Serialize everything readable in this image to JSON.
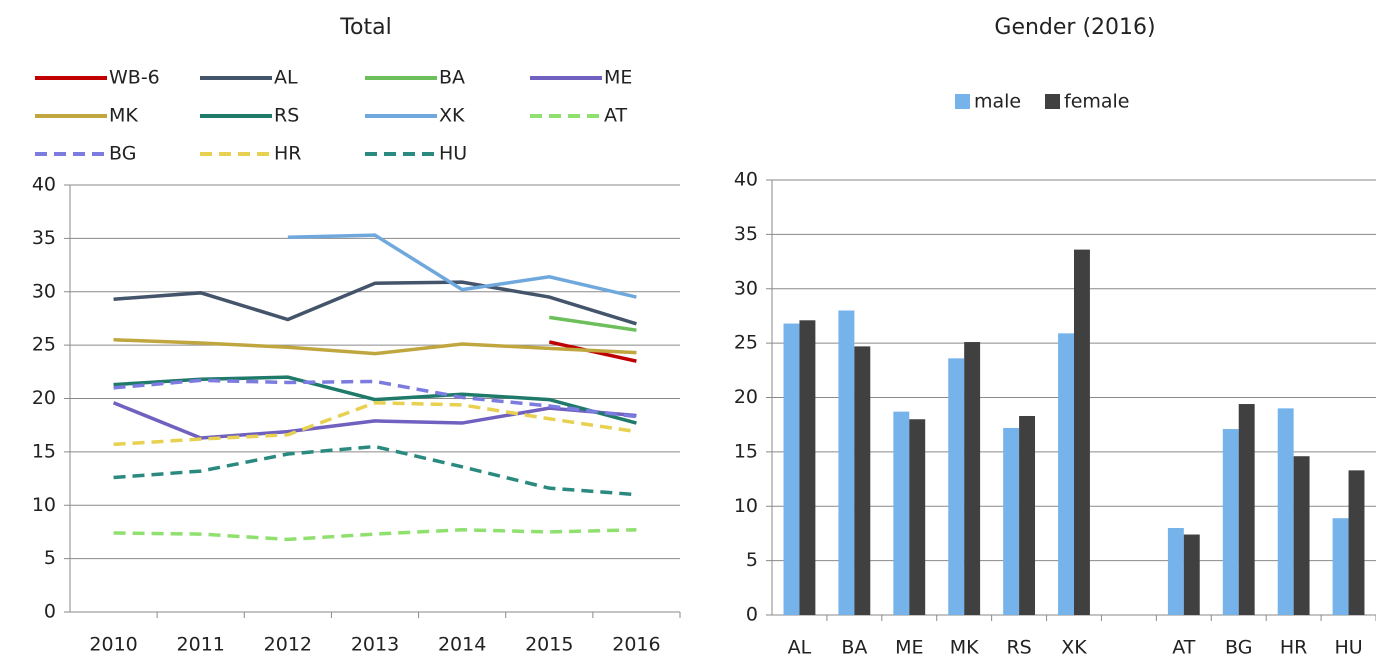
{
  "chart_data": [
    {
      "type": "line",
      "title": "Total",
      "categories": [
        "2010",
        "2011",
        "2012",
        "2013",
        "2014",
        "2015",
        "2016"
      ],
      "ylim": [
        0,
        40
      ],
      "yticks": [
        0,
        5,
        10,
        15,
        20,
        25,
        30,
        35,
        40
      ],
      "grid": true,
      "series": [
        {
          "name": "WB-6",
          "color": "#c00000",
          "values": [
            null,
            null,
            null,
            null,
            null,
            25.3,
            23.5
          ]
        },
        {
          "name": "AL",
          "color": "#44546a",
          "values": [
            29.3,
            29.9,
            27.4,
            30.8,
            30.9,
            29.5,
            27.0
          ]
        },
        {
          "name": "BA",
          "color": "#6cbf5a",
          "values": [
            null,
            null,
            null,
            null,
            null,
            27.6,
            26.4
          ]
        },
        {
          "name": "ME",
          "color": "#7060c0",
          "values": [
            19.6,
            16.3,
            16.9,
            17.9,
            17.7,
            19.1,
            18.4
          ]
        },
        {
          "name": "MK",
          "color": "#bfa63f",
          "values": [
            25.5,
            25.2,
            24.8,
            24.2,
            25.1,
            24.7,
            24.3
          ]
        },
        {
          "name": "RS",
          "color": "#1f7a6a",
          "values": [
            21.3,
            21.8,
            22.0,
            19.9,
            20.4,
            19.9,
            17.7
          ]
        },
        {
          "name": "XK",
          "color": "#6fa8dc",
          "values": [
            null,
            null,
            35.1,
            35.3,
            30.2,
            31.4,
            29.5
          ]
        },
        {
          "name": "AT",
          "color": "#90e070",
          "dashed": true,
          "values": [
            7.4,
            7.3,
            6.8,
            7.3,
            7.7,
            7.5,
            7.7
          ]
        },
        {
          "name": "BG",
          "color": "#7b7be0",
          "dashed": true,
          "values": [
            21.0,
            21.7,
            21.5,
            21.6,
            20.1,
            19.3,
            18.3
          ]
        },
        {
          "name": "HR",
          "color": "#e8d050",
          "dashed": true,
          "values": [
            15.7,
            16.2,
            16.6,
            19.6,
            19.4,
            18.1,
            16.9
          ]
        },
        {
          "name": "HU",
          "color": "#2a8a80",
          "dashed": true,
          "values": [
            12.6,
            13.2,
            14.8,
            15.5,
            13.6,
            11.6,
            11.0
          ]
        }
      ]
    },
    {
      "type": "bar",
      "title": "Gender (2016)",
      "categories": [
        "AL",
        "BA",
        "ME",
        "MK",
        "RS",
        "XK",
        null,
        "AT",
        "BG",
        "HR",
        "HU"
      ],
      "ylim": [
        0,
        40
      ],
      "yticks": [
        0,
        5,
        10,
        15,
        20,
        25,
        30,
        35,
        40
      ],
      "grid": true,
      "series": [
        {
          "name": "male",
          "color": "#75b3ea",
          "values": [
            26.8,
            28.0,
            18.7,
            23.6,
            17.2,
            25.9,
            null,
            8.0,
            17.1,
            19.0,
            8.9
          ]
        },
        {
          "name": "female",
          "color": "#404040",
          "values": [
            27.1,
            24.7,
            18.0,
            25.1,
            18.3,
            33.6,
            null,
            7.4,
            19.4,
            14.6,
            13.3
          ]
        }
      ]
    }
  ]
}
